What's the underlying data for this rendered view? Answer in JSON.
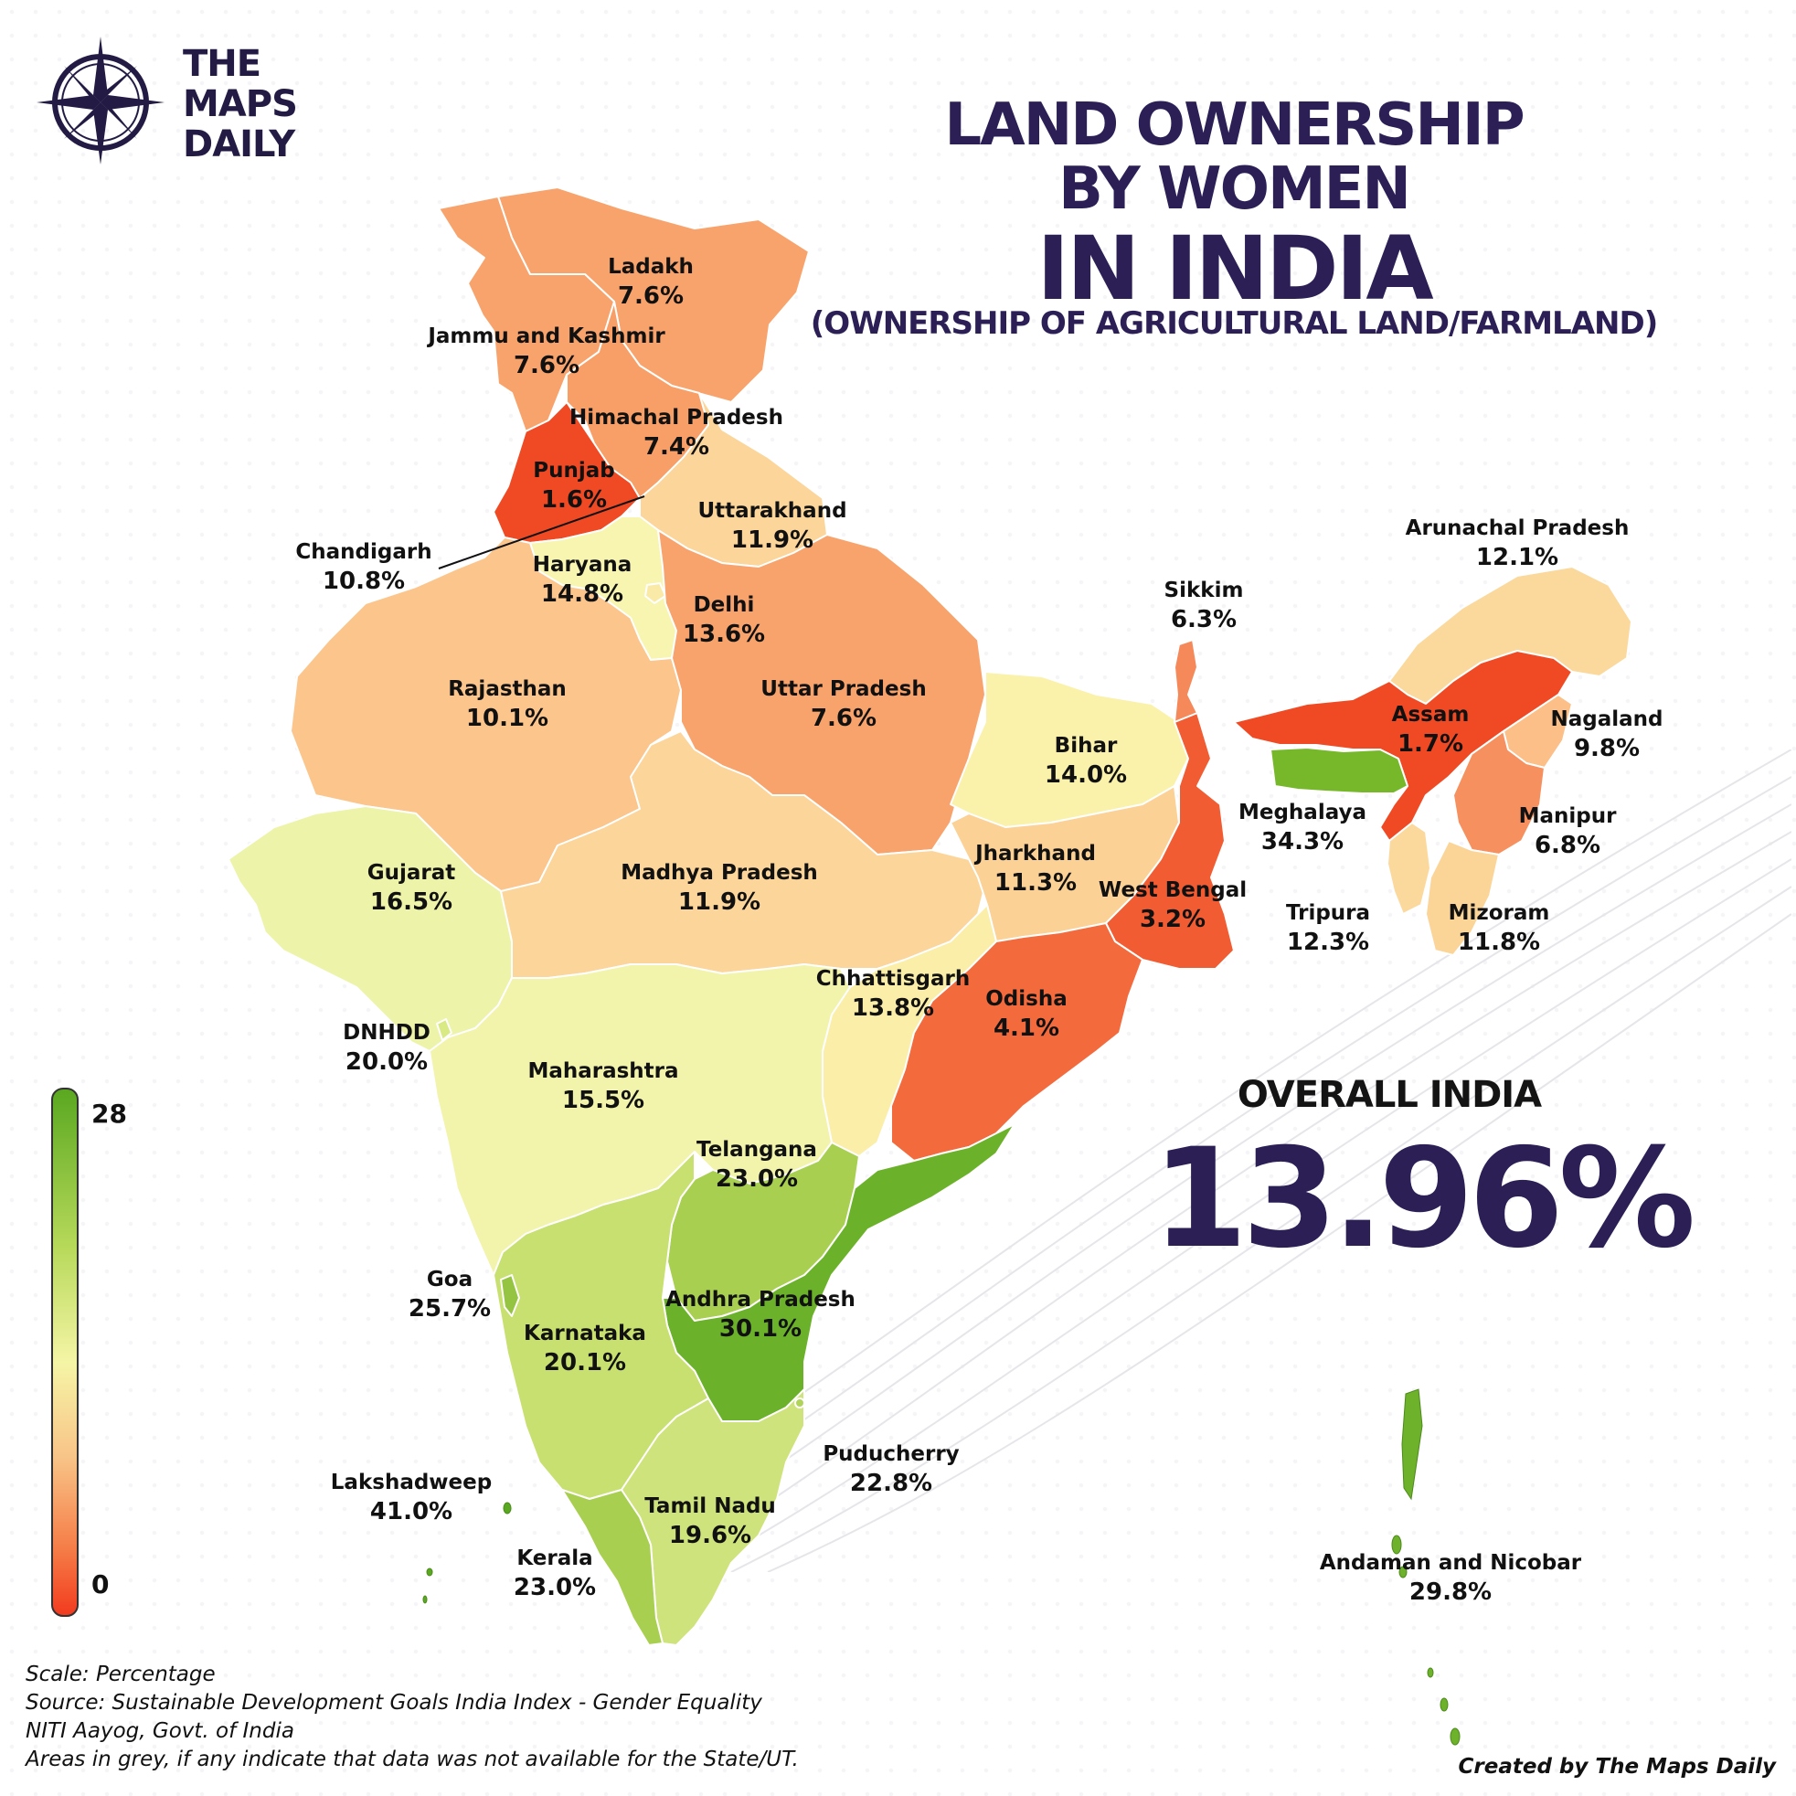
{
  "brand": {
    "line1": "THE",
    "line2": "MAPS",
    "line3": "DAILY"
  },
  "title": {
    "line1": "LAND OWNERSHIP",
    "line2": "BY WOMEN",
    "line3": "IN INDIA",
    "subtitle": "(OWNERSHIP OF AGRICULTURAL LAND/FARMLAND)"
  },
  "overall": {
    "label": "OVERALL INDIA",
    "value": "13.96%"
  },
  "legend": {
    "max": "28",
    "min": "0",
    "colors": [
      "#5aa820",
      "#f5f5a6",
      "#f23b1f"
    ]
  },
  "regions": {
    "ladakh": {
      "name": "Ladakh",
      "value": "7.6%",
      "color": "#f8a36c"
    },
    "jk": {
      "name": "Jammu and Kashmir",
      "value": "7.6%",
      "color": "#f8a36c"
    },
    "hp": {
      "name": "Himachal Pradesh",
      "value": "7.4%",
      "color": "#f79f66"
    },
    "punjab": {
      "name": "Punjab",
      "value": "1.6%",
      "color": "#f04a24"
    },
    "uttarakhand": {
      "name": "Uttarakhand",
      "value": "11.9%",
      "color": "#fbd59a"
    },
    "chandigarh": {
      "name": "Chandigarh",
      "value": "10.8%",
      "color": "#fbcf92"
    },
    "haryana": {
      "name": "Haryana",
      "value": "14.8%",
      "color": "#f7f5b0"
    },
    "delhi": {
      "name": "Delhi",
      "value": "13.6%",
      "color": "#faeaa7"
    },
    "rajasthan": {
      "name": "Rajasthan",
      "value": "10.1%",
      "color": "#fbc58c"
    },
    "up": {
      "name": "Uttar Pradesh",
      "value": "7.6%",
      "color": "#f8a36c"
    },
    "bihar": {
      "name": "Bihar",
      "value": "14.0%",
      "color": "#faf1ab"
    },
    "sikkim": {
      "name": "Sikkim",
      "value": "6.3%",
      "color": "#f5895a"
    },
    "arunachal": {
      "name": "Arunachal Pradesh",
      "value": "12.1%",
      "color": "#fbd89c"
    },
    "assam": {
      "name": "Assam",
      "value": "1.7%",
      "color": "#f04a24"
    },
    "nagaland": {
      "name": "Nagaland",
      "value": "9.8%",
      "color": "#fbbf87"
    },
    "meghalaya": {
      "name": "Meghalaya",
      "value": "34.3%",
      "color": "#76b82a"
    },
    "manipur": {
      "name": "Manipur",
      "value": "6.8%",
      "color": "#f6905e"
    },
    "tripura": {
      "name": "Tripura",
      "value": "12.3%",
      "color": "#fbd99d"
    },
    "mizoram": {
      "name": "Mizoram",
      "value": "11.8%",
      "color": "#fbd498"
    },
    "gujarat": {
      "name": "Gujarat",
      "value": "16.5%",
      "color": "#edf3a8"
    },
    "mp": {
      "name": "Madhya Pradesh",
      "value": "11.9%",
      "color": "#fbd59a"
    },
    "jharkhand": {
      "name": "Jharkhand",
      "value": "11.3%",
      "color": "#fbd195"
    },
    "wb": {
      "name": "West Bengal",
      "value": "3.2%",
      "color": "#f15c32"
    },
    "chhattisgarh": {
      "name": "Chhattisgarh",
      "value": "13.8%",
      "color": "#faeea9"
    },
    "odisha": {
      "name": "Odisha",
      "value": "4.1%",
      "color": "#f36a3d"
    },
    "dnhdd": {
      "name": "DNHDD",
      "value": "20.0%",
      "color": "#d9e984"
    },
    "maharashtra": {
      "name": "Maharashtra",
      "value": "15.5%",
      "color": "#f1f4aa"
    },
    "telangana": {
      "name": "Telangana",
      "value": "23.0%",
      "color": "#a8cf50"
    },
    "goa": {
      "name": "Goa",
      "value": "25.7%",
      "color": "#94c441"
    },
    "karnataka": {
      "name": "Karnataka",
      "value": "20.1%",
      "color": "#c7e070"
    },
    "ap": {
      "name": "Andhra Pradesh",
      "value": "30.1%",
      "color": "#6bb22a"
    },
    "puducherry": {
      "name": "Puducherry",
      "value": "22.8%",
      "color": "#b0d359"
    },
    "lakshadweep": {
      "name": "Lakshadweep",
      "value": "41.0%",
      "color": "#5aa820"
    },
    "tn": {
      "name": "Tamil Nadu",
      "value": "19.6%",
      "color": "#cfe37c"
    },
    "kerala": {
      "name": "Kerala",
      "value": "23.0%",
      "color": "#a8cf50"
    },
    "andaman": {
      "name": "Andaman and Nicobar",
      "value": "29.8%",
      "color": "#6db22a"
    }
  },
  "footer": {
    "scale": "Scale: Percentage",
    "source": "Source: Sustainable Development Goals India Index - Gender Equality",
    "org": "NITI Aayog, Govt. of India",
    "note": "Areas in grey, if any indicate that data was not available for the State/UT.",
    "credit": "Created by The Maps Daily"
  }
}
